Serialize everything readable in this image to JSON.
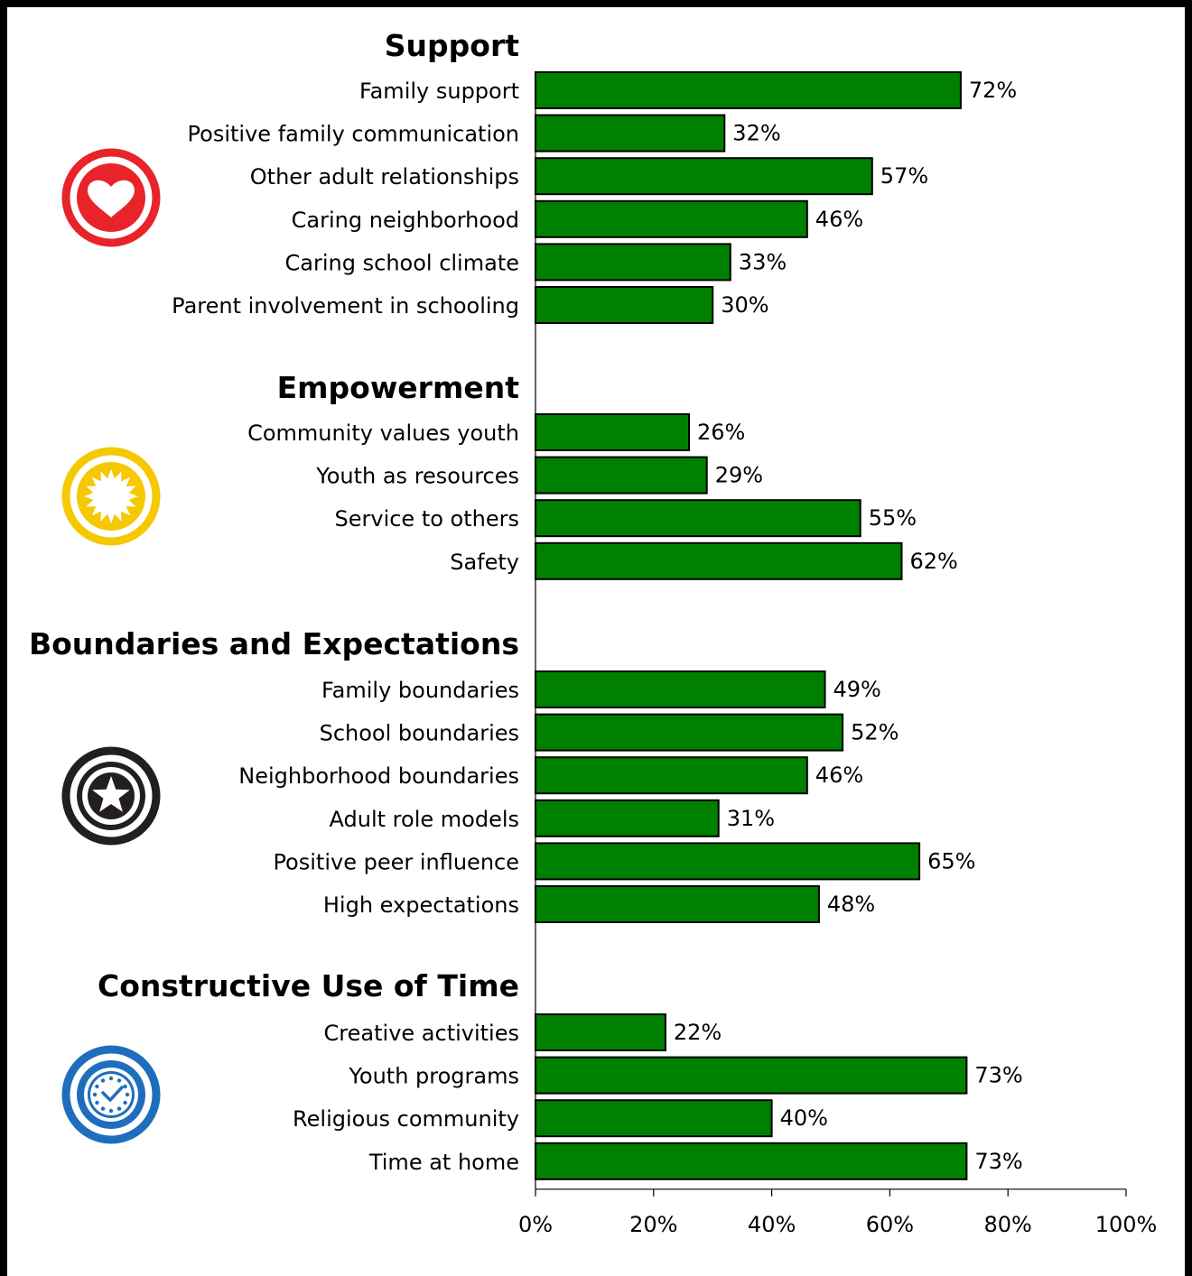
{
  "chart_data": {
    "type": "bar",
    "orientation": "horizontal",
    "xlim": [
      0,
      100
    ],
    "x_ticks": [
      "0%",
      "20%",
      "40%",
      "60%",
      "80%",
      "100%"
    ],
    "bar_color": "#008000",
    "grid": false,
    "groups": [
      {
        "title": "Support",
        "icon": "heart-icon",
        "icon_color": "#e8232a",
        "categories": [
          "Family support",
          "Positive family communication",
          "Other adult relationships",
          "Caring neighborhood",
          "Caring school climate",
          "Parent involvement in schooling"
        ],
        "values": [
          72,
          32,
          57,
          46,
          33,
          30
        ],
        "labels": [
          "72%",
          "32%",
          "57%",
          "46%",
          "33%",
          "30%"
        ]
      },
      {
        "title": "Empowerment",
        "icon": "sun-icon",
        "icon_color": "#f5c800",
        "categories": [
          "Community values youth",
          "Youth as resources",
          "Service to others",
          "Safety"
        ],
        "values": [
          26,
          29,
          55,
          62
        ],
        "labels": [
          "26%",
          "29%",
          "55%",
          "62%"
        ]
      },
      {
        "title": "Boundaries and Expectations",
        "icon": "star-icon",
        "icon_color": "#231f20",
        "categories": [
          "Family boundaries",
          "School boundaries",
          "Neighborhood boundaries",
          "Adult role models",
          "Positive peer influence",
          "High expectations"
        ],
        "values": [
          49,
          52,
          46,
          31,
          65,
          48
        ],
        "labels": [
          "49%",
          "52%",
          "46%",
          "31%",
          "65%",
          "48%"
        ]
      },
      {
        "title": "Constructive Use of Time",
        "icon": "clock-icon",
        "icon_color": "#1f6ebd",
        "categories": [
          "Creative activities",
          "Youth programs",
          "Religious community",
          "Time at home"
        ],
        "values": [
          22,
          73,
          40,
          73
        ],
        "labels": [
          "22%",
          "73%",
          "40%",
          "73%"
        ]
      }
    ]
  }
}
